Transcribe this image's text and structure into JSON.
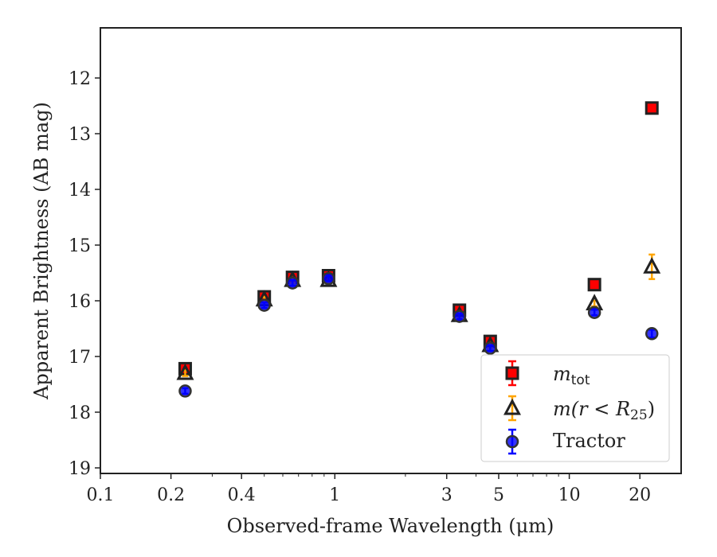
{
  "chart_data": {
    "type": "scatter",
    "title": "",
    "xlabel": "Observed-frame Wavelength (μm)",
    "ylabel": "Apparent Brightness (AB mag)",
    "x_scale": "log",
    "xlim": [
      0.1,
      30
    ],
    "ylim": [
      19.1,
      11.1
    ],
    "y_inverted": true,
    "x_ticks": [
      {
        "value": 0.1,
        "label": "0.1"
      },
      {
        "value": 0.2,
        "label": "0.2"
      },
      {
        "value": 0.4,
        "label": "0.4"
      },
      {
        "value": 1,
        "label": "1"
      },
      {
        "value": 3,
        "label": "3"
      },
      {
        "value": 5,
        "label": "5"
      },
      {
        "value": 10,
        "label": "10"
      },
      {
        "value": 20,
        "label": "20"
      }
    ],
    "y_ticks": [
      {
        "value": 12,
        "label": "12"
      },
      {
        "value": 13,
        "label": "13"
      },
      {
        "value": 14,
        "label": "14"
      },
      {
        "value": 15,
        "label": "15"
      },
      {
        "value": 16,
        "label": "16"
      },
      {
        "value": 17,
        "label": "17"
      },
      {
        "value": 18,
        "label": "18"
      },
      {
        "value": 19,
        "label": "19"
      }
    ],
    "grid": false,
    "legend_position": "lower-right",
    "series": [
      {
        "name": "m_tot",
        "marker": "square",
        "color": "#ff0000",
        "edge_color": "#222222",
        "error_color": "#ff0000",
        "points": [
          {
            "x": 0.23,
            "y": 17.22,
            "err": 0.05
          },
          {
            "x": 0.5,
            "y": 15.93,
            "err": 0.05
          },
          {
            "x": 0.66,
            "y": 15.58,
            "err": 0.05
          },
          {
            "x": 0.94,
            "y": 15.55,
            "err": 0.05
          },
          {
            "x": 3.4,
            "y": 16.17,
            "err": 0.05
          },
          {
            "x": 4.6,
            "y": 16.73,
            "err": 0.05
          },
          {
            "x": 12.8,
            "y": 15.71,
            "err": 0.05
          },
          {
            "x": 22.5,
            "y": 12.54,
            "err": 0.05
          }
        ]
      },
      {
        "name": "m(r<R25)",
        "marker": "triangle",
        "color": "#ffa500",
        "edge_color": "#222222",
        "error_color": "#ffa500",
        "points": [
          {
            "x": 0.23,
            "y": 17.3,
            "err": 0.05
          },
          {
            "x": 0.5,
            "y": 15.98,
            "err": 0.05
          },
          {
            "x": 0.66,
            "y": 15.63,
            "err": 0.05
          },
          {
            "x": 0.94,
            "y": 15.63,
            "err": 0.05
          },
          {
            "x": 3.4,
            "y": 16.26,
            "err": 0.05
          },
          {
            "x": 4.6,
            "y": 16.8,
            "err": 0.05
          },
          {
            "x": 12.8,
            "y": 16.05,
            "err": 0.05
          },
          {
            "x": 22.5,
            "y": 15.39,
            "err": 0.22
          }
        ]
      },
      {
        "name": "Tractor",
        "marker": "circle",
        "color": "#0000ff",
        "edge_color": "#222222",
        "error_color": "#0000ff",
        "points": [
          {
            "x": 0.23,
            "y": 17.62,
            "err": 0.05
          },
          {
            "x": 0.5,
            "y": 16.08,
            "err": 0.05
          },
          {
            "x": 0.66,
            "y": 15.68,
            "err": 0.05
          },
          {
            "x": 0.94,
            "y": 15.6,
            "err": 0.05
          },
          {
            "x": 3.4,
            "y": 16.28,
            "err": 0.05
          },
          {
            "x": 4.6,
            "y": 16.85,
            "err": 0.05
          },
          {
            "x": 12.8,
            "y": 16.21,
            "err": 0.05
          },
          {
            "x": 22.5,
            "y": 16.59,
            "err": 0.07
          }
        ]
      }
    ]
  },
  "legend": {
    "items": [
      {
        "symbol": "m",
        "subscript": "tot",
        "rest": ""
      },
      {
        "symbol": "m",
        "subscript": "",
        "rest": "(r < R",
        "sub2": "25",
        "close": ")"
      },
      {
        "symbol": "",
        "subscript": "",
        "rest": "Tractor"
      }
    ]
  }
}
